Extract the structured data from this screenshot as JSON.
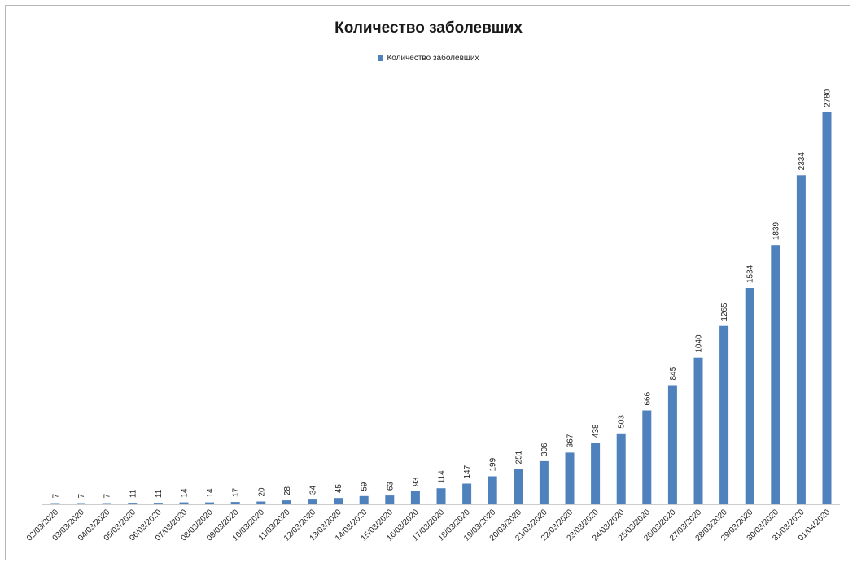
{
  "chart_data": {
    "type": "bar",
    "title": "Количество заболевших",
    "legend": {
      "placement": "top",
      "entries": [
        "Количество заболевших"
      ]
    },
    "grid": false,
    "ylim": [
      0,
      2780
    ],
    "categories": [
      "02/03/2020",
      "03/03/2020",
      "04/03/2020",
      "05/03/2020",
      "06/03/2020",
      "07/03/2020",
      "08/03/2020",
      "09/03/2020",
      "10/03/2020",
      "11/03/2020",
      "12/03/2020",
      "13/03/2020",
      "14/03/2020",
      "15/03/2020",
      "16/03/2020",
      "17/03/2020",
      "18/03/2020",
      "19/03/2020",
      "20/03/2020",
      "21/03/2020",
      "22/03/2020",
      "23/03/2020",
      "24/03/2020",
      "25/03/2020",
      "26/03/2020",
      "27/03/2020",
      "28/03/2020",
      "29/03/2020",
      "30/03/2020",
      "31/03/2020",
      "01/04/2020"
    ],
    "series": [
      {
        "name": "Количество заболевших",
        "color": "#4f81bd",
        "values": [
          7,
          7,
          7,
          11,
          11,
          14,
          14,
          17,
          20,
          28,
          34,
          45,
          59,
          63,
          93,
          114,
          147,
          199,
          251,
          306,
          367,
          438,
          503,
          666,
          845,
          1040,
          1265,
          1534,
          1839,
          2334,
          2780
        ]
      }
    ]
  }
}
